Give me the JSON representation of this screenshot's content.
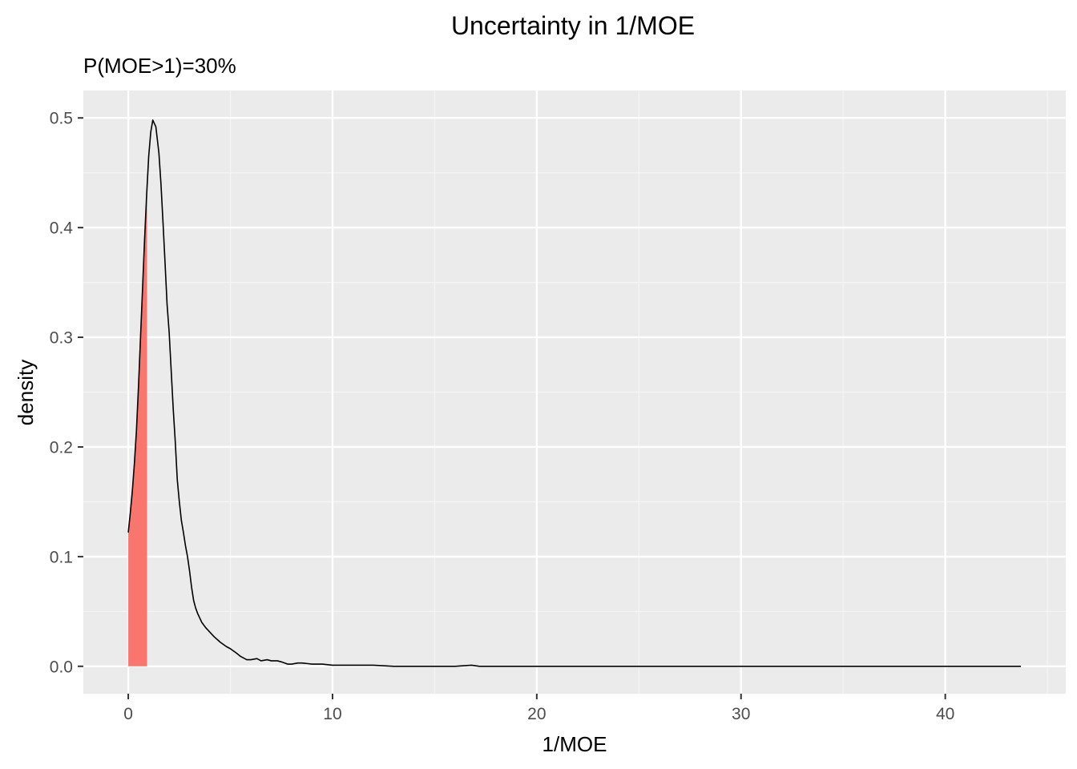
{
  "chart_data": {
    "type": "area",
    "title": "Uncertainty in 1/MOE",
    "subtitle": "P(MOE>1)=30%",
    "xlabel": "1/MOE",
    "ylabel": "density",
    "xlim": [
      -2.2,
      45.9
    ],
    "ylim": [
      -0.025,
      0.525
    ],
    "x_ticks": [
      0,
      10,
      20,
      30,
      40
    ],
    "x_tick_labels": [
      "0",
      "10",
      "20",
      "30",
      "40"
    ],
    "y_ticks": [
      0.0,
      0.1,
      0.2,
      0.3,
      0.4,
      0.5
    ],
    "y_tick_labels": [
      "0.0",
      "0.1",
      "0.2",
      "0.3",
      "0.4",
      "0.5"
    ],
    "grid": true,
    "colors": {
      "panel_background": "#ebebeb",
      "grid_major": "#ffffff",
      "grid_minor": "#f5f5f5",
      "density_line": "#000000",
      "shaded_region": "#f8766d"
    },
    "series": [
      {
        "x": [
          0.0,
          0.1,
          0.2,
          0.3,
          0.4,
          0.5,
          0.6,
          0.7,
          0.8,
          0.9,
          1.0,
          1.1,
          1.2,
          1.35,
          1.5,
          1.6,
          1.7,
          1.8,
          1.9,
          2.0,
          2.1,
          2.2,
          2.3,
          2.4,
          2.5,
          2.6,
          2.7,
          2.8,
          2.9,
          3.0,
          3.1,
          3.2,
          3.3,
          3.4,
          3.6,
          3.8,
          4.0,
          4.2,
          4.5,
          4.8,
          5.0,
          5.3,
          5.5,
          5.8,
          6.0,
          6.3,
          6.5,
          6.8,
          7.0,
          7.3,
          7.5,
          7.8,
          8.0,
          8.3,
          8.5,
          9.0,
          9.5,
          10.0,
          10.5,
          11.0,
          11.5,
          12.0,
          13.0,
          14.0,
          15.0,
          16.0,
          16.8,
          17.2,
          18.0,
          20.0,
          25.0,
          30.0,
          35.0,
          40.0,
          43.7
        ],
        "y": [
          0.122,
          0.14,
          0.16,
          0.185,
          0.215,
          0.255,
          0.3,
          0.345,
          0.39,
          0.43,
          0.465,
          0.487,
          0.498,
          0.492,
          0.468,
          0.44,
          0.405,
          0.368,
          0.33,
          0.305,
          0.27,
          0.235,
          0.205,
          0.17,
          0.15,
          0.133,
          0.122,
          0.11,
          0.1,
          0.087,
          0.072,
          0.06,
          0.053,
          0.048,
          0.04,
          0.035,
          0.031,
          0.027,
          0.022,
          0.018,
          0.016,
          0.012,
          0.009,
          0.006,
          0.006,
          0.007,
          0.005,
          0.006,
          0.005,
          0.005,
          0.004,
          0.002,
          0.002,
          0.003,
          0.003,
          0.002,
          0.002,
          0.001,
          0.001,
          0.001,
          0.001,
          0.001,
          0.0,
          0.0,
          0.0,
          0.0,
          0.001,
          0.0,
          0.0,
          0.0,
          0.0,
          0.0,
          0.0,
          0.0,
          0.0
        ]
      }
    ],
    "shaded_interval": [
      0,
      0.92
    ]
  }
}
